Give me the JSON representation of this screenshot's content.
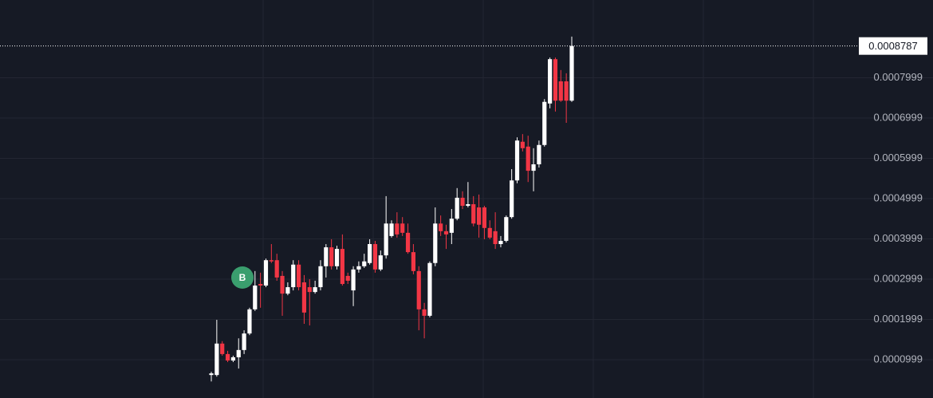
{
  "chart_data": {
    "type": "candlestick",
    "up_color": "#ffffff",
    "down_color": "#f23645",
    "grid": true,
    "ylim": [
      4.9e-06,
      0.0009929
    ],
    "yticks": [
      9.99e-05,
      0.0001999,
      0.0002999,
      0.0003999,
      0.0004999,
      0.0005999,
      0.0006999,
      0.0007999
    ],
    "last_price": 0.0008787,
    "annotations": [
      {
        "text": "B",
        "color": "#3a9e6e"
      }
    ],
    "series": [
      {
        "open": [
          6.2e-05,
          6.2e-05,
          0.00014,
          0.000114,
          9.8e-05,
          0.000106,
          0.000124,
          0.000165,
          0.000225,
          0.000288,
          0.000284,
          0.000347,
          0.000347,
          0.000308,
          0.000264,
          0.00028,
          0.000336,
          0.000292,
          0.00028,
          0.000268,
          0.00028,
          0.000332,
          0.000379,
          0.000332,
          0.000375,
          0.000308,
          0.000272,
          0.000324,
          0.000332,
          0.00034,
          0.000387,
          0.000324,
          0.000359,
          0.000407,
          0.000438,
          0.000438,
          0.000415,
          0.000367,
          0.00032,
          0.000225,
          0.000209,
          0.00034,
          0.000438,
          0.000419,
          0.000415,
          0.00045,
          0.000502,
          0.000482,
          0.000486,
          0.000478,
          0.000478,
          0.000427,
          0.000419,
          0.000387,
          0.000395,
          0.000454,
          0.000545,
          0.000641,
          0.000629,
          0.000569,
          0.000585,
          0.000633,
          0.000736,
          0.000846,
          0.000791,
          0.000791,
          0.000743
        ],
        "high": [
          7e-05,
          0.000199,
          0.000146,
          0.000122,
          0.00011,
          0.000153,
          0.000173,
          0.000229,
          0.00032,
          0.000316,
          0.000351,
          0.000387,
          0.000363,
          0.00032,
          0.000292,
          0.000347,
          0.000347,
          0.00031,
          0.0003,
          0.000296,
          0.000347,
          0.000387,
          0.000399,
          0.000383,
          0.000411,
          0.000316,
          0.000332,
          0.000344,
          0.000363,
          0.000399,
          0.000395,
          0.000371,
          0.000506,
          0.000446,
          0.000466,
          0.000454,
          0.000438,
          0.000387,
          0.000332,
          0.000241,
          0.000344,
          0.000478,
          0.000458,
          0.000435,
          0.000474,
          0.000526,
          0.000518,
          0.000541,
          0.000506,
          0.00051,
          0.000482,
          0.000446,
          0.000466,
          0.000407,
          0.000458,
          0.000573,
          0.000652,
          0.00066,
          0.000656,
          0.000625,
          0.000644,
          0.000747,
          0.00085,
          0.00085,
          0.000819,
          0.000811,
          0.000902
        ],
        "low": [
          4.6e-05,
          5.8e-05,
          0.00011,
          9.4e-05,
          9.4e-05,
          7.8e-05,
          0.000114,
          0.000161,
          0.000221,
          0.000229,
          0.00028,
          0.00034,
          0.000296,
          0.000209,
          0.00026,
          0.000272,
          0.000272,
          0.000189,
          0.000185,
          0.000264,
          0.000272,
          0.000304,
          0.000324,
          0.000324,
          0.000284,
          0.000288,
          0.000233,
          0.000316,
          0.000328,
          0.000336,
          0.000316,
          0.00032,
          0.000351,
          0.000403,
          0.000403,
          0.000407,
          0.000363,
          0.000312,
          0.000173,
          0.000153,
          0.000205,
          0.000332,
          0.000407,
          0.000375,
          0.000387,
          0.000446,
          0.000474,
          0.000478,
          0.000431,
          0.000403,
          0.000399,
          0.000399,
          0.000375,
          0.000379,
          0.000391,
          0.00045,
          0.000538,
          0.000617,
          0.000541,
          0.000518,
          0.000577,
          0.000629,
          0.000724,
          0.000716,
          0.00074,
          0.000688,
          0.00074
        ],
        "close": [
          6.6e-05,
          0.00014,
          0.000114,
          9.8e-05,
          0.000106,
          0.000124,
          0.000165,
          0.000225,
          0.000284,
          0.000284,
          0.000347,
          0.000344,
          0.000304,
          0.000264,
          0.00028,
          0.000336,
          0.00028,
          0.000217,
          0.000268,
          0.00028,
          0.000332,
          0.000379,
          0.000332,
          0.000375,
          0.000288,
          0.000296,
          0.000324,
          0.000332,
          0.000344,
          0.000387,
          0.000324,
          0.000359,
          0.000438,
          0.000438,
          0.000411,
          0.000415,
          0.000367,
          0.00032,
          0.000225,
          0.000209,
          0.00034,
          0.000438,
          0.000419,
          0.000411,
          0.00045,
          0.000502,
          0.000482,
          0.000486,
          0.000438,
          0.000435,
          0.000427,
          0.000403,
          0.000387,
          0.000395,
          0.000454,
          0.000545,
          0.000644,
          0.000625,
          0.000569,
          0.000585,
          0.000633,
          0.00074,
          0.000846,
          0.000743,
          0.000743,
          0.000743,
          0.0008787
        ]
      }
    ]
  }
}
